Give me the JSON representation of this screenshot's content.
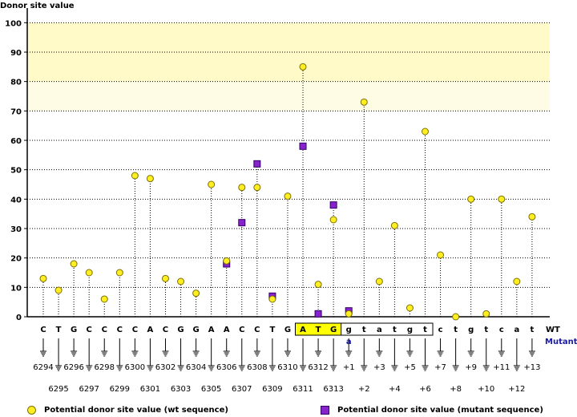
{
  "chart_data": {
    "type": "scatter",
    "title": "",
    "ylabel": "Donor site value",
    "ylim": [
      0,
      105
    ],
    "yticks": [
      0,
      10,
      20,
      30,
      40,
      50,
      60,
      70,
      80,
      90,
      100
    ],
    "highlight_bands": [
      {
        "from": 80,
        "to": 100,
        "color": "#fffac8"
      },
      {
        "from": 70,
        "to": 80,
        "color": "#fffce6"
      }
    ],
    "grid": true,
    "row_labels": {
      "wt": "WT",
      "mutant": "Mutant"
    },
    "positions": [
      {
        "label": "6294",
        "base": "C",
        "wt": 13
      },
      {
        "label": "6295",
        "base": "T",
        "wt": 9
      },
      {
        "label": "6296",
        "base": "G",
        "wt": 18
      },
      {
        "label": "6297",
        "base": "C",
        "wt": 15
      },
      {
        "label": "6298",
        "base": "C",
        "wt": 6
      },
      {
        "label": "6299",
        "base": "C",
        "wt": 15
      },
      {
        "label": "6300",
        "base": "C",
        "wt": 48
      },
      {
        "label": "6301",
        "base": "A",
        "wt": 47
      },
      {
        "label": "6302",
        "base": "C",
        "wt": 13
      },
      {
        "label": "6303",
        "base": "G",
        "wt": 12
      },
      {
        "label": "6304",
        "base": "G",
        "wt": 8
      },
      {
        "label": "6305",
        "base": "A",
        "wt": 45
      },
      {
        "label": "6306",
        "base": "A",
        "wt": 19,
        "mut": 18
      },
      {
        "label": "6307",
        "base": "C",
        "wt": 44,
        "mut": 32
      },
      {
        "label": "6308",
        "base": "C",
        "wt": 44,
        "mut": 52
      },
      {
        "label": "6309",
        "base": "T",
        "wt": 6,
        "mut": 7
      },
      {
        "label": "6310",
        "base": "G",
        "wt": 41
      },
      {
        "label": "6311",
        "base": "A",
        "wt": 85,
        "mut": 58,
        "boxed": true
      },
      {
        "label": "6312",
        "base": "T",
        "wt": 11,
        "mut": 1,
        "boxed": true
      },
      {
        "label": "6313",
        "base": "G",
        "wt": 33,
        "mut": 38,
        "boxed": true
      },
      {
        "label": "+1",
        "base": "g",
        "wt": 1,
        "mut": 2,
        "mutant_base": "a",
        "boxed": true
      },
      {
        "label": "+2",
        "base": "t",
        "wt": 73,
        "boxed": true
      },
      {
        "label": "+3",
        "base": "a",
        "wt": 12,
        "boxed": true
      },
      {
        "label": "+4",
        "base": "t",
        "wt": 31,
        "boxed": true
      },
      {
        "label": "+5",
        "base": "g",
        "wt": 3,
        "boxed": true
      },
      {
        "label": "+6",
        "base": "t",
        "wt": 63,
        "boxed": true
      },
      {
        "label": "+7",
        "base": "c",
        "wt": 21
      },
      {
        "label": "+8",
        "base": "t",
        "wt": 0
      },
      {
        "label": "+9",
        "base": "g",
        "wt": 40
      },
      {
        "label": "+10",
        "base": "t",
        "wt": 1
      },
      {
        "label": "+11",
        "base": "c",
        "wt": 40
      },
      {
        "label": "+12",
        "base": "a",
        "wt": 12
      },
      {
        "label": "+13",
        "base": "t",
        "wt": 34
      }
    ],
    "series": [
      {
        "name": "Potential donor site value (wt sequence)",
        "key": "wt",
        "marker": "circle",
        "color": "#ffee22"
      },
      {
        "name": "Potential donor site value (mutant sequence)",
        "key": "mut",
        "marker": "square",
        "color": "#8822cc"
      }
    ],
    "colors": {
      "exon_highlight": "#ffff00",
      "mutant_text": "#1a1aa8"
    },
    "legend_position": "bottom"
  }
}
